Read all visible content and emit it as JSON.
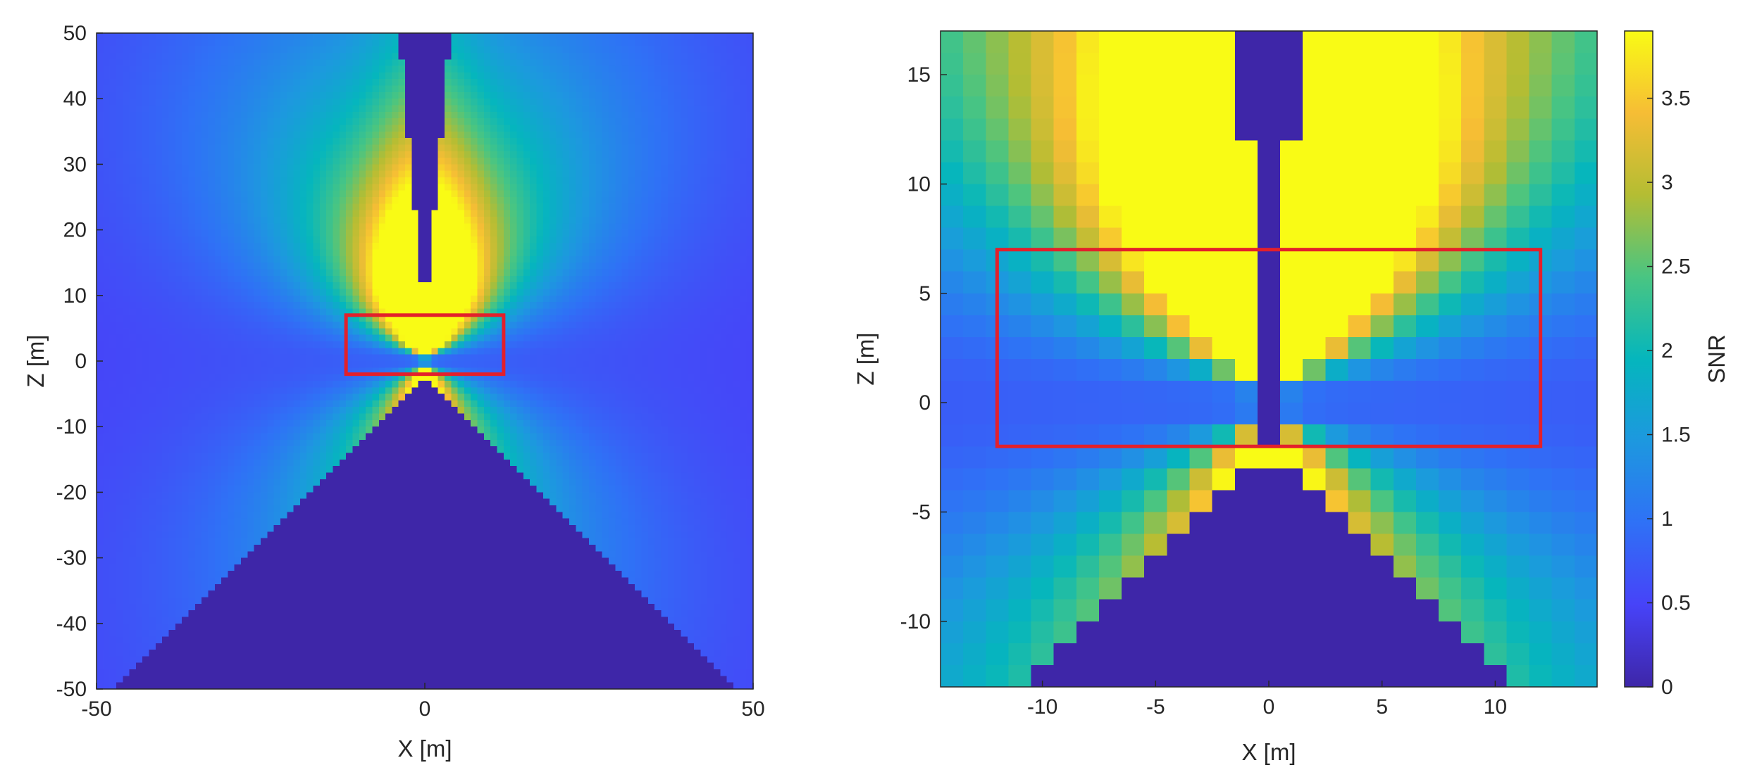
{
  "chart_data": [
    {
      "type": "heatmap",
      "title": "",
      "xlabel": "X [m]",
      "ylabel": "Z [m]",
      "xlim": [
        -50,
        50
      ],
      "ylim": [
        -50,
        50
      ],
      "xticks": [
        -50,
        0,
        50
      ],
      "yticks": [
        50,
        40,
        30,
        20,
        10,
        0,
        -10,
        -20,
        -30,
        -40,
        -50
      ],
      "grid": false,
      "value_label": "SNR",
      "value_range": [
        0,
        3.9
      ],
      "field": {
        "description": "SNR over the X-Z plane around a vertical structure",
        "peak_snr": 3.8,
        "peak_region": "above the structure, z 5 to 45",
        "null_line_z": 0,
        "shadow_cone": "below z = -3, widening to x = ±50 at z = -50"
      },
      "highlight_box": {
        "x": [
          -12,
          12
        ],
        "z": [
          -2,
          7
        ],
        "color": "#e3202b"
      }
    },
    {
      "type": "heatmap",
      "title": "",
      "xlabel": "X [m]",
      "ylabel": "Z [m]",
      "xlim": [
        -14.5,
        14.5
      ],
      "ylim": [
        -13,
        17
      ],
      "xticks": [
        -10,
        -5,
        0,
        5,
        10
      ],
      "yticks": [
        15,
        10,
        5,
        0,
        -5,
        -10
      ],
      "grid": false,
      "value_label": "SNR",
      "value_range": [
        0,
        3.9
      ],
      "highlight_box": {
        "x": [
          -12,
          12
        ],
        "z": [
          -2,
          7
        ],
        "color": "#e3202b"
      }
    }
  ],
  "colorbar": {
    "label": "SNR",
    "range": [
      0,
      3.9
    ],
    "ticks": [
      3.5,
      3,
      2.5,
      2,
      1.5,
      1,
      0.5,
      0
    ],
    "colormap": "parula"
  }
}
